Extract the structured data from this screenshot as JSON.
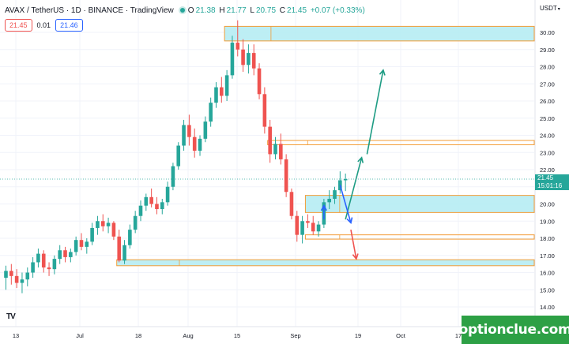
{
  "header": {
    "symbol": "AVAX / TetherUS · 1D · BINANCE · TradingView",
    "o_label": "O",
    "o_value": "21.38",
    "h_label": "H",
    "h_value": "21.77",
    "l_label": "L",
    "l_value": "20.75",
    "c_label": "C",
    "c_value": "21.45",
    "change": "+0.07 (+0.33%)"
  },
  "trade": {
    "sell_price": "21.45",
    "spread": "0.01",
    "buy_price": "21.46"
  },
  "currency": "USDT",
  "last_price": {
    "price": "21.45",
    "countdown": "15:01:16"
  },
  "tradingview_logo": "TV",
  "brand": "optionclue.com",
  "colors": {
    "up": "#26a69a",
    "down": "#ef5350",
    "zone_fill": "#b2ebf2",
    "zone_border": "#f39c36",
    "arrow_green": "#1e9c84",
    "arrow_blue": "#2962ff",
    "arrow_red": "#ef5350",
    "brand_bg": "#2da045"
  },
  "chart_data": {
    "type": "candlestick",
    "y_axis_ticks": [
      "30.00",
      "29.00",
      "28.00",
      "27.00",
      "26.00",
      "25.00",
      "24.00",
      "23.00",
      "22.00",
      "21.00",
      "20.00",
      "19.00",
      "18.00",
      "17.00",
      "16.00",
      "15.00",
      "14.00"
    ],
    "ylim": [
      13.5,
      31.2
    ],
    "x_axis_labels": [
      "13",
      "Jul",
      "18",
      "Aug",
      "15",
      "Sep",
      "19",
      "Oct",
      "17"
    ],
    "grid": true,
    "zones": [
      {
        "type": "fill",
        "from": 29.5,
        "to": 30.35,
        "start_day": 41,
        "end_day": 106
      },
      {
        "type": "line",
        "from": 23.45,
        "to": 23.7,
        "start_day": 49,
        "end_day": 106
      },
      {
        "type": "fill",
        "from": 19.5,
        "to": 20.5,
        "start_day": 56,
        "end_day": 106
      },
      {
        "type": "line",
        "from": 17.95,
        "to": 18.2,
        "start_day": 56,
        "end_day": 106
      },
      {
        "type": "fill",
        "from": 16.4,
        "to": 16.75,
        "start_day": 21,
        "end_day": 106
      }
    ],
    "projections": [
      {
        "color": "green",
        "from_day": 63,
        "from_value": 19.1,
        "to_day": 66,
        "to_value": 22.7
      },
      {
        "color": "green",
        "from_day": 67,
        "from_value": 22.9,
        "to_day": 70,
        "to_value": 27.8
      },
      {
        "color": "blue",
        "from_day": 62,
        "from_value": 21.1,
        "to_day": 64,
        "to_value": 18.9
      },
      {
        "color": "blue",
        "from_day": 59,
        "from_value": 19.1,
        "to_day": 59,
        "to_value": 19.9
      },
      {
        "color": "red",
        "from_day": 64,
        "from_value": 18.5,
        "to_day": 65,
        "to_value": 16.8
      }
    ],
    "candles": [
      [
        15.7,
        16.4,
        15.0,
        16.1
      ],
      [
        16.1,
        16.5,
        15.3,
        15.8
      ],
      [
        15.8,
        16.2,
        15.1,
        15.4
      ],
      [
        15.4,
        16.0,
        14.8,
        15.6
      ],
      [
        15.6,
        16.3,
        15.2,
        16.0
      ],
      [
        16.0,
        16.9,
        15.7,
        16.6
      ],
      [
        16.6,
        17.4,
        16.3,
        17.1
      ],
      [
        17.1,
        17.3,
        16.0,
        16.3
      ],
      [
        16.3,
        16.6,
        15.8,
        16.2
      ],
      [
        16.2,
        17.0,
        15.9,
        16.8
      ],
      [
        16.8,
        17.6,
        16.5,
        17.3
      ],
      [
        17.3,
        17.5,
        16.6,
        16.9
      ],
      [
        16.9,
        17.4,
        16.6,
        17.2
      ],
      [
        17.2,
        18.1,
        17.0,
        17.9
      ],
      [
        17.9,
        18.3,
        17.3,
        17.5
      ],
      [
        17.5,
        18.0,
        17.1,
        17.8
      ],
      [
        17.8,
        18.9,
        17.6,
        18.6
      ],
      [
        18.6,
        19.3,
        18.2,
        19.0
      ],
      [
        19.0,
        19.4,
        18.4,
        18.7
      ],
      [
        18.7,
        19.2,
        18.3,
        18.9
      ],
      [
        18.9,
        19.0,
        17.9,
        18.1
      ],
      [
        18.1,
        18.5,
        16.6,
        16.7
      ],
      [
        16.7,
        17.9,
        16.5,
        17.6
      ],
      [
        17.6,
        18.8,
        17.4,
        18.5
      ],
      [
        18.5,
        19.6,
        18.3,
        19.3
      ],
      [
        19.3,
        20.2,
        19.0,
        19.9
      ],
      [
        19.9,
        20.6,
        19.6,
        20.4
      ],
      [
        20.4,
        20.9,
        19.8,
        20.0
      ],
      [
        20.0,
        20.4,
        19.4,
        19.7
      ],
      [
        19.7,
        20.3,
        19.4,
        20.1
      ],
      [
        20.1,
        21.3,
        19.9,
        21.0
      ],
      [
        21.0,
        22.4,
        20.8,
        22.2
      ],
      [
        22.2,
        23.6,
        22.0,
        23.4
      ],
      [
        23.4,
        24.9,
        23.1,
        24.6
      ],
      [
        24.6,
        25.2,
        23.4,
        23.9
      ],
      [
        23.9,
        24.4,
        22.7,
        23.1
      ],
      [
        23.1,
        24.0,
        22.8,
        23.8
      ],
      [
        23.8,
        25.1,
        23.6,
        24.8
      ],
      [
        24.8,
        26.2,
        24.5,
        25.9
      ],
      [
        25.9,
        27.1,
        25.6,
        26.8
      ],
      [
        26.8,
        27.4,
        25.9,
        26.3
      ],
      [
        26.3,
        27.8,
        26.0,
        27.5
      ],
      [
        27.5,
        29.8,
        27.3,
        29.4
      ],
      [
        29.4,
        30.7,
        28.6,
        29.0
      ],
      [
        29.0,
        29.6,
        27.7,
        28.1
      ],
      [
        28.1,
        29.3,
        27.6,
        28.8
      ],
      [
        28.8,
        29.3,
        27.5,
        27.9
      ],
      [
        27.9,
        28.2,
        26.1,
        26.4
      ],
      [
        26.4,
        26.8,
        24.1,
        24.5
      ],
      [
        24.5,
        24.9,
        22.4,
        22.9
      ],
      [
        22.9,
        23.9,
        22.6,
        23.5
      ],
      [
        23.5,
        24.1,
        22.3,
        22.6
      ],
      [
        22.6,
        22.9,
        20.4,
        20.7
      ],
      [
        20.7,
        20.9,
        19.1,
        19.3
      ],
      [
        19.3,
        19.6,
        17.8,
        18.2
      ],
      [
        18.2,
        19.3,
        17.7,
        19.0
      ],
      [
        19.0,
        19.4,
        18.6,
        18.9
      ],
      [
        18.9,
        19.3,
        18.2,
        18.4
      ],
      [
        18.4,
        19.0,
        18.1,
        18.8
      ],
      [
        18.8,
        20.3,
        18.6,
        20.1
      ],
      [
        20.1,
        20.8,
        19.7,
        20.3
      ],
      [
        20.3,
        21.0,
        20.0,
        20.8
      ],
      [
        20.8,
        21.9,
        20.6,
        21.38
      ],
      [
        21.38,
        21.77,
        20.75,
        21.45
      ]
    ]
  }
}
